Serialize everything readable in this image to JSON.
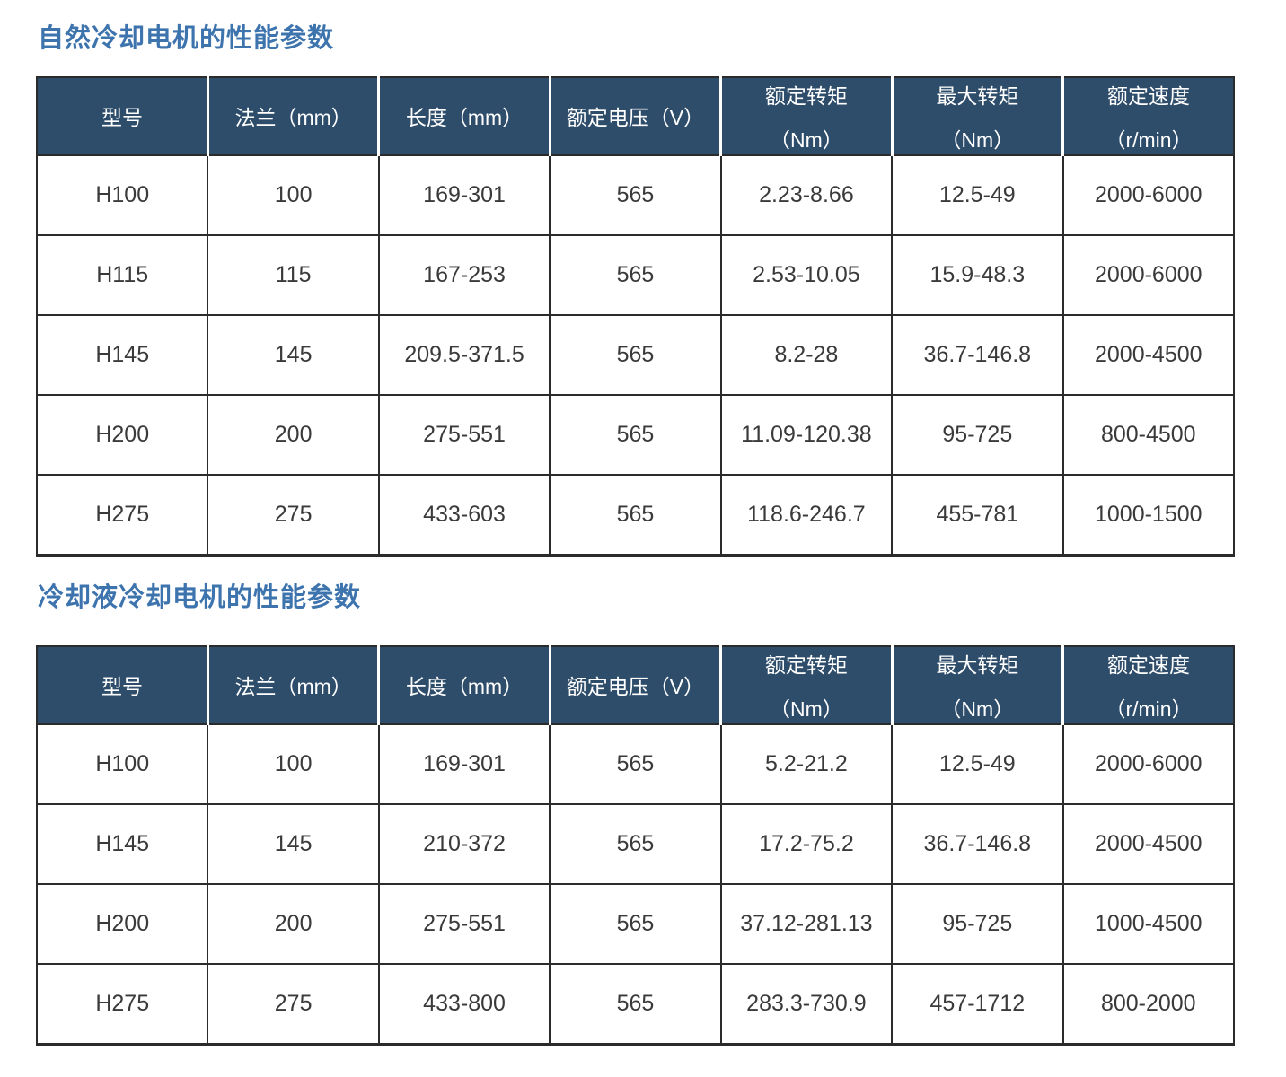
{
  "colors": {
    "title_text": "#3e74ae",
    "header_bg": "#2e4d6b",
    "header_text": "#ffffff",
    "body_text": "#3a3a3a",
    "grid_border": "#2b2b2b"
  },
  "tables": [
    {
      "title": "自然冷却电机的性能参数",
      "headers": [
        {
          "lines": [
            "型号"
          ]
        },
        {
          "lines": [
            "法兰（mm）"
          ]
        },
        {
          "lines": [
            "长度（mm）"
          ]
        },
        {
          "lines": [
            "额定电压（V）"
          ]
        },
        {
          "lines": [
            "额定转矩",
            "（Nm）"
          ]
        },
        {
          "lines": [
            "最大转矩",
            "（Nm）"
          ]
        },
        {
          "lines": [
            "额定速度",
            "（r/min）"
          ]
        }
      ],
      "rows": [
        [
          "H100",
          "100",
          "169-301",
          "565",
          "2.23-8.66",
          "12.5-49",
          "2000-6000"
        ],
        [
          "H115",
          "115",
          "167-253",
          "565",
          "2.53-10.05",
          "15.9-48.3",
          "2000-6000"
        ],
        [
          "H145",
          "145",
          "209.5-371.5",
          "565",
          "8.2-28",
          "36.7-146.8",
          "2000-4500"
        ],
        [
          "H200",
          "200",
          "275-551",
          "565",
          "11.09-120.38",
          "95-725",
          "800-4500"
        ],
        [
          "H275",
          "275",
          "433-603",
          "565",
          "118.6-246.7",
          "455-781",
          "1000-1500"
        ]
      ]
    },
    {
      "title": "冷却液冷却电机的性能参数",
      "headers": [
        {
          "lines": [
            "型号"
          ]
        },
        {
          "lines": [
            "法兰（mm）"
          ]
        },
        {
          "lines": [
            "长度（mm）"
          ]
        },
        {
          "lines": [
            "额定电压（V）"
          ]
        },
        {
          "lines": [
            "额定转矩",
            "（Nm）"
          ]
        },
        {
          "lines": [
            "最大转矩",
            "（Nm）"
          ]
        },
        {
          "lines": [
            "额定速度",
            "（r/min）"
          ]
        }
      ],
      "rows": [
        [
          "H100",
          "100",
          "169-301",
          "565",
          "5.2-21.2",
          "12.5-49",
          "2000-6000"
        ],
        [
          "H145",
          "145",
          "210-372",
          "565",
          "17.2-75.2",
          "36.7-146.8",
          "2000-4500"
        ],
        [
          "H200",
          "200",
          "275-551",
          "565",
          "37.12-281.13",
          "95-725",
          "1000-4500"
        ],
        [
          "H275",
          "275",
          "433-800",
          "565",
          "283.3-730.9",
          "457-1712",
          "800-2000"
        ]
      ]
    }
  ]
}
